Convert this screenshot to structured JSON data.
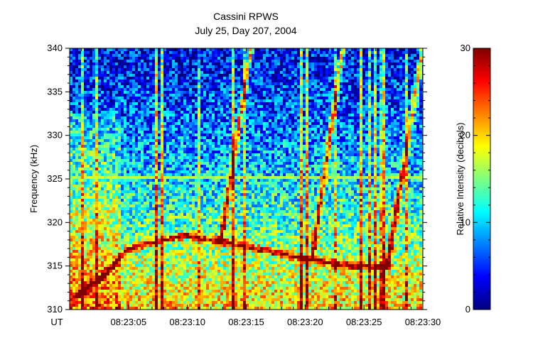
{
  "chart_data": {
    "type": "heatmap",
    "title": "Cassini RPWS",
    "subtitle": "July 25, Day 207, 2004",
    "xlabel_prefix": "UT",
    "ylabel": "Frequency (kHz)",
    "ylim": [
      310,
      340
    ],
    "y_ticks": [
      {
        "value": 310,
        "label": "310"
      },
      {
        "value": 315,
        "label": "315"
      },
      {
        "value": 320,
        "label": "320"
      },
      {
        "value": 325,
        "label": "325"
      },
      {
        "value": 330,
        "label": "330"
      },
      {
        "value": 335,
        "label": "335"
      },
      {
        "value": 340,
        "label": "340"
      }
    ],
    "xlim_seconds": [
      0,
      30
    ],
    "x_ticks": [
      {
        "value": 5,
        "label": "08:23:05"
      },
      {
        "value": 10,
        "label": "08:23:10"
      },
      {
        "value": 15,
        "label": "08:23:15"
      },
      {
        "value": 20,
        "label": "08:23:20"
      },
      {
        "value": 25,
        "label": "08:23:25"
      },
      {
        "value": 30,
        "label": "08:23:30"
      }
    ],
    "colorbar": {
      "label": "Relative Intensity (decibels)",
      "range": [
        0,
        30
      ],
      "ticks": [
        {
          "value": 0,
          "label": "0"
        },
        {
          "value": 10,
          "label": "10"
        },
        {
          "value": 20,
          "label": "20"
        },
        {
          "value": 30,
          "label": "30"
        }
      ],
      "colormap": [
        "#00007f",
        "#0000ff",
        "#0080ff",
        "#00ffff",
        "#7fff7f",
        "#ffff00",
        "#ff8000",
        "#ff0000",
        "#7f0000"
      ]
    },
    "features": {
      "horizontal_line": {
        "frequency": 325.2
      },
      "falling_tone": [
        {
          "t": 0.5,
          "f": 311.5
        },
        {
          "t": 3,
          "f": 314
        },
        {
          "t": 5,
          "f": 317
        },
        {
          "t": 8,
          "f": 318
        },
        {
          "t": 10,
          "f": 318.5
        },
        {
          "t": 14,
          "f": 317.5
        },
        {
          "t": 20,
          "f": 315.8
        },
        {
          "t": 24,
          "f": 315
        },
        {
          "t": 27,
          "f": 314.8
        }
      ],
      "rising_tones": [
        {
          "points": [
            {
              "t": 12.8,
              "f": 317.5
            },
            {
              "t": 15.4,
              "f": 340
            }
          ]
        },
        {
          "points": [
            {
              "t": 20.6,
              "f": 316
            },
            {
              "t": 23.2,
              "f": 340
            }
          ]
        },
        {
          "points": [
            {
              "t": 27,
              "f": 315
            },
            {
              "t": 30,
              "f": 340
            }
          ]
        }
      ]
    }
  }
}
